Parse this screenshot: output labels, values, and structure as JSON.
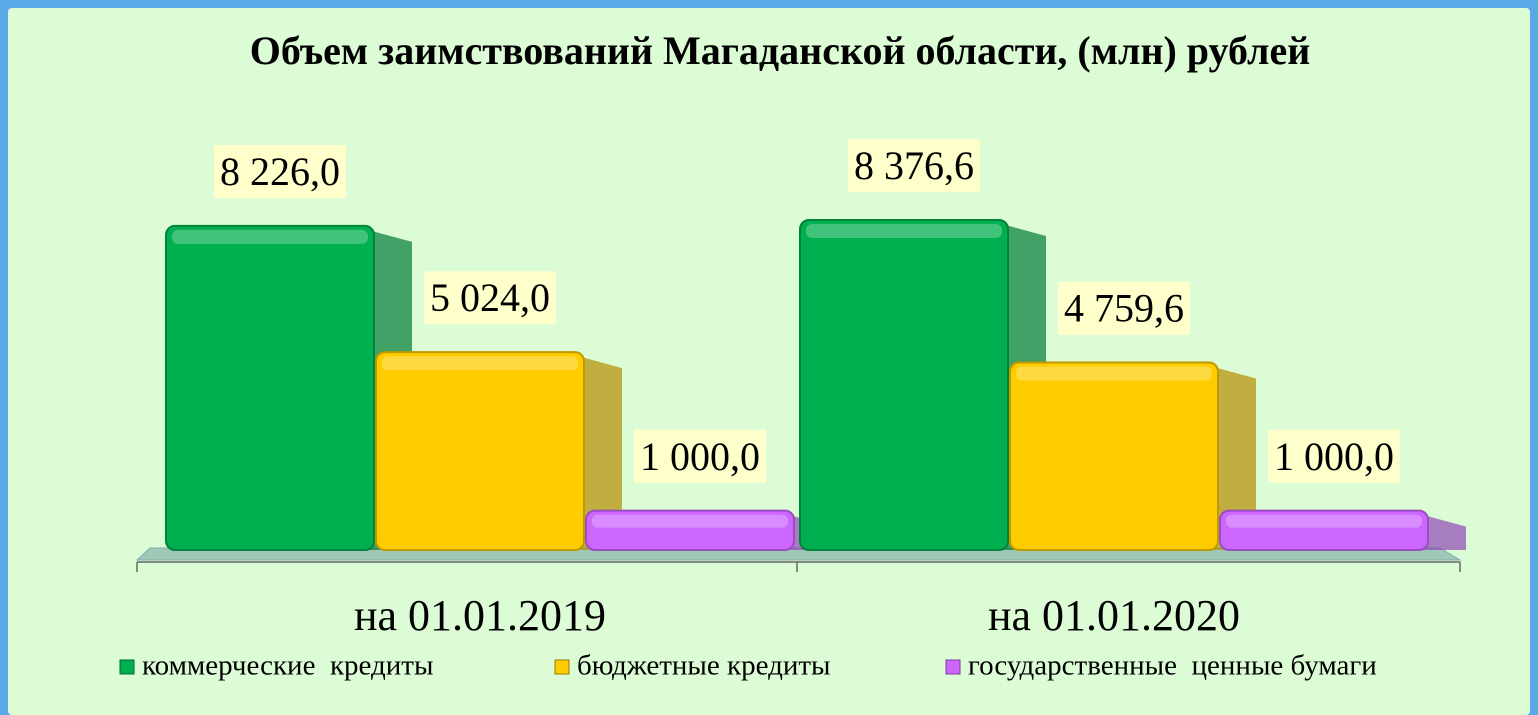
{
  "chart_data": {
    "type": "bar3d",
    "title": "Объем заимствований Магаданской области, (млн) рублей",
    "categories": [
      "на 01.01.2019",
      "на 01.01.2020"
    ],
    "series": [
      {
        "name": "коммерческие  кредиты",
        "color": "#00b050",
        "values": [
          8226.0,
          8376.6
        ],
        "value_labels": [
          "8 226,0",
          "8 376,6"
        ]
      },
      {
        "name": "бюджетные кредиты",
        "color": "#ffcc00",
        "values": [
          5024.0,
          4759.6
        ],
        "value_labels": [
          "5 024,0",
          "4 759,6"
        ]
      },
      {
        "name": "государственные  ценные бумаги",
        "color": "#cc66ff",
        "values": [
          1000.0,
          1000.0
        ],
        "value_labels": [
          "1 000,0",
          "1 000,0"
        ]
      }
    ],
    "legend": "bottom"
  }
}
